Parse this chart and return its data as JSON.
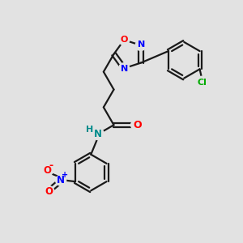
{
  "bg_color": "#e2e2e2",
  "bond_color": "#1a1a1a",
  "colors": {
    "O": "#ff0000",
    "N": "#0000ff",
    "N_amide": "#008b8b",
    "Cl": "#00aa00",
    "C": "#1a1a1a",
    "H": "#008b8b"
  },
  "figsize": [
    3.0,
    3.0
  ],
  "dpi": 100
}
